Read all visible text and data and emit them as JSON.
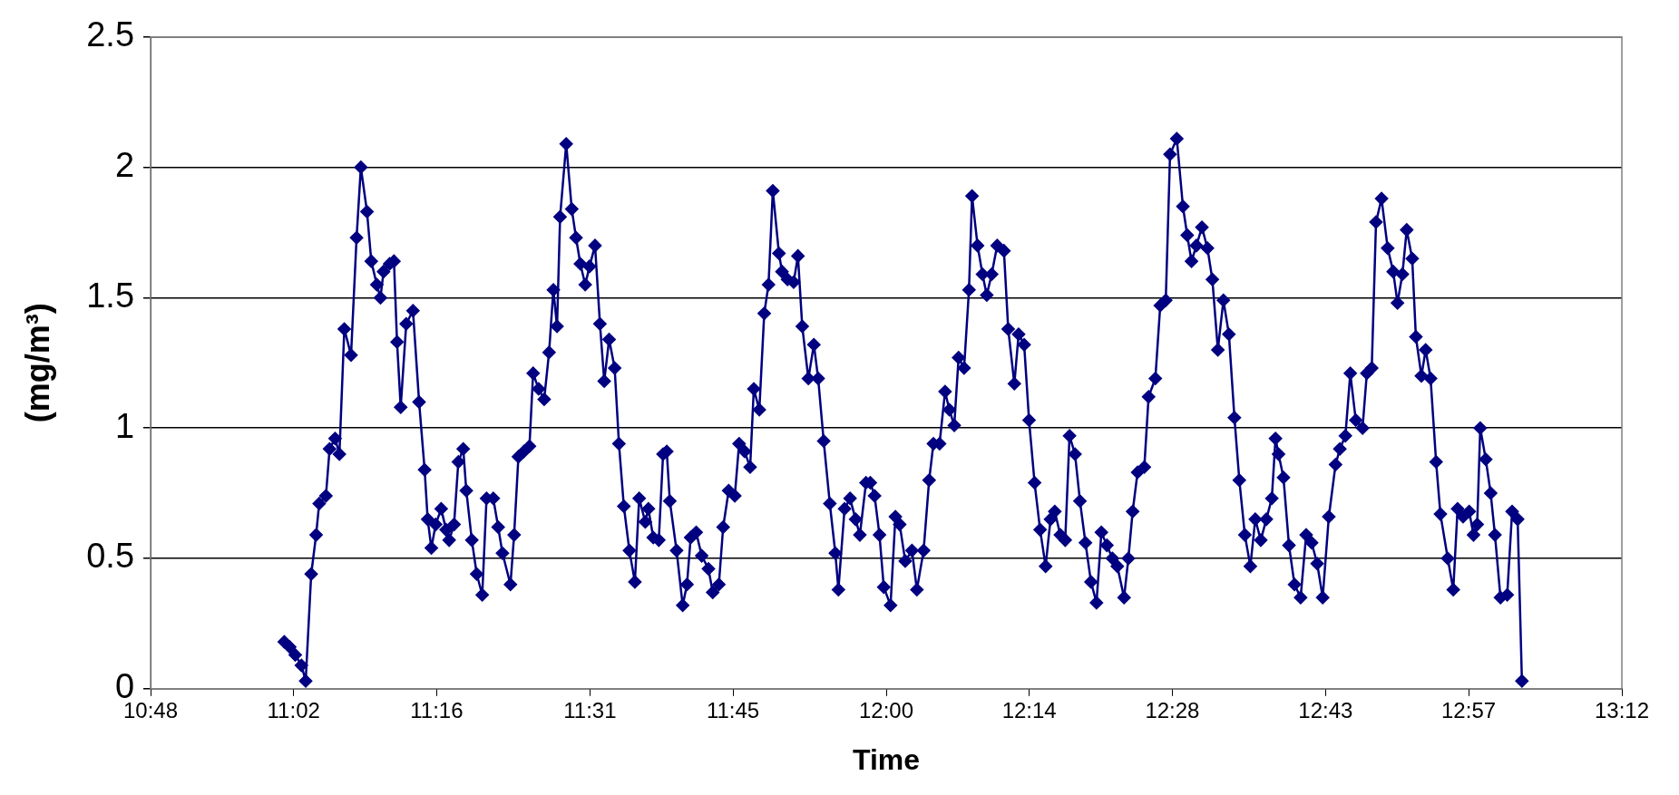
{
  "chart_data": {
    "type": "line",
    "xlabel": "Time",
    "ylabel": "(mg/m³)",
    "xlim": [
      10.8,
      13.2
    ],
    "ylim": [
      0,
      2.5
    ],
    "xticks": [
      {
        "value": 10.8,
        "label": "10:48"
      },
      {
        "value": 11.0333,
        "label": "11:02"
      },
      {
        "value": 11.2667,
        "label": "11:16"
      },
      {
        "value": 11.5167,
        "label": "11:31"
      },
      {
        "value": 11.75,
        "label": "11:45"
      },
      {
        "value": 12.0,
        "label": "12:00"
      },
      {
        "value": 12.2333,
        "label": "12:14"
      },
      {
        "value": 12.4667,
        "label": "12:28"
      },
      {
        "value": 12.7167,
        "label": "12:43"
      },
      {
        "value": 12.95,
        "label": "12:57"
      },
      {
        "value": 13.2,
        "label": "13:12"
      }
    ],
    "yticks": [
      0,
      0.5,
      1,
      1.5,
      2,
      2.5
    ],
    "grid": "y",
    "legend": false,
    "marker": "diamond",
    "line_style": "solid",
    "series": [
      {
        "color": "#000080",
        "x": [
          11.018,
          11.027,
          11.036,
          11.046,
          11.053,
          11.062,
          11.07,
          11.075,
          11.086,
          11.092,
          11.101,
          11.108,
          11.116,
          11.127,
          11.136,
          11.143,
          11.153,
          11.16,
          11.169,
          11.175,
          11.18,
          11.19,
          11.197,
          11.202,
          11.208,
          11.217,
          11.228,
          11.238,
          11.247,
          11.252,
          11.258,
          11.265,
          11.274,
          11.282,
          11.287,
          11.295,
          11.302,
          11.31,
          11.315,
          11.324,
          11.332,
          11.341,
          11.348,
          11.359,
          11.367,
          11.374,
          11.387,
          11.393,
          11.4,
          11.409,
          11.418,
          11.424,
          11.433,
          11.442,
          11.45,
          11.457,
          11.463,
          11.468,
          11.478,
          11.487,
          11.494,
          11.501,
          11.509,
          11.516,
          11.525,
          11.533,
          11.54,
          11.548,
          11.557,
          11.564,
          11.572,
          11.581,
          11.59,
          11.597,
          11.607,
          11.612,
          11.62,
          11.629,
          11.636,
          11.642,
          11.647,
          11.658,
          11.668,
          11.675,
          11.681,
          11.69,
          11.699,
          11.71,
          11.717,
          11.727,
          11.734,
          11.743,
          11.753,
          11.76,
          11.769,
          11.778,
          11.784,
          11.793,
          11.801,
          11.808,
          11.815,
          11.825,
          11.83,
          11.839,
          11.849,
          11.856,
          11.863,
          11.873,
          11.882,
          11.889,
          11.898,
          11.908,
          11.917,
          11.922,
          11.932,
          11.941,
          11.95,
          11.957,
          11.967,
          11.974,
          11.981,
          11.989,
          11.996,
          12.007,
          12.015,
          12.022,
          12.031,
          12.042,
          12.05,
          12.061,
          12.07,
          12.077,
          12.087,
          12.096,
          12.103,
          12.111,
          12.118,
          12.127,
          12.135,
          12.14,
          12.149,
          12.157,
          12.164,
          12.172,
          12.181,
          12.192,
          12.199,
          12.209,
          12.216,
          12.225,
          12.233,
          12.242,
          12.251,
          12.26,
          12.268,
          12.275,
          12.284,
          12.292,
          12.299,
          12.308,
          12.316,
          12.325,
          12.334,
          12.343,
          12.351,
          12.36,
          12.369,
          12.377,
          12.388,
          12.395,
          12.402,
          12.41,
          12.421,
          12.428,
          12.439,
          12.447,
          12.456,
          12.463,
          12.474,
          12.484,
          12.491,
          12.498,
          12.506,
          12.515,
          12.524,
          12.532,
          12.541,
          12.55,
          12.559,
          12.568,
          12.576,
          12.585,
          12.594,
          12.602,
          12.611,
          12.62,
          12.629,
          12.635,
          12.64,
          12.648,
          12.657,
          12.666,
          12.676,
          12.685,
          12.694,
          12.703,
          12.712,
          12.722,
          12.733,
          12.74,
          12.749,
          12.757,
          12.766,
          12.777,
          12.784,
          12.792,
          12.799,
          12.808,
          12.818,
          12.827,
          12.834,
          12.842,
          12.849,
          12.858,
          12.864,
          12.873,
          12.88,
          12.888,
          12.897,
          12.904,
          12.916,
          12.925,
          12.932,
          12.941,
          12.951,
          12.958,
          12.964,
          12.969,
          12.978,
          12.986,
          12.993,
          13.002,
          13.013,
          13.021,
          13.03,
          13.037
        ],
        "values": [
          0.18,
          0.16,
          0.13,
          0.09,
          0.03,
          0.44,
          0.59,
          0.71,
          0.74,
          0.92,
          0.96,
          0.9,
          1.38,
          1.28,
          1.73,
          2.0,
          1.83,
          1.64,
          1.55,
          1.5,
          1.6,
          1.63,
          1.64,
          1.33,
          1.08,
          1.4,
          1.45,
          1.1,
          0.84,
          0.65,
          0.54,
          0.63,
          0.69,
          0.61,
          0.57,
          0.63,
          0.87,
          0.92,
          0.76,
          0.57,
          0.44,
          0.36,
          0.73,
          0.73,
          0.62,
          0.52,
          0.4,
          0.59,
          0.89,
          0.91,
          0.93,
          1.21,
          1.15,
          1.11,
          1.29,
          1.53,
          1.39,
          1.81,
          2.09,
          1.84,
          1.73,
          1.63,
          1.55,
          1.62,
          1.7,
          1.4,
          1.18,
          1.34,
          1.23,
          0.94,
          0.7,
          0.53,
          0.41,
          0.73,
          0.64,
          0.69,
          0.58,
          0.57,
          0.9,
          0.91,
          0.72,
          0.53,
          0.32,
          0.4,
          0.58,
          0.6,
          0.51,
          0.46,
          0.37,
          0.4,
          0.62,
          0.76,
          0.74,
          0.94,
          0.91,
          0.85,
          1.15,
          1.07,
          1.44,
          1.55,
          1.91,
          1.67,
          1.6,
          1.57,
          1.56,
          1.66,
          1.39,
          1.19,
          1.32,
          1.19,
          0.95,
          0.71,
          0.52,
          0.38,
          0.69,
          0.73,
          0.65,
          0.59,
          0.79,
          0.79,
          0.74,
          0.59,
          0.39,
          0.32,
          0.66,
          0.63,
          0.49,
          0.53,
          0.38,
          0.53,
          0.8,
          0.94,
          0.94,
          1.14,
          1.07,
          1.01,
          1.27,
          1.23,
          1.53,
          1.89,
          1.7,
          1.59,
          1.51,
          1.59,
          1.7,
          1.68,
          1.38,
          1.17,
          1.36,
          1.32,
          1.03,
          0.79,
          0.61,
          0.47,
          0.65,
          0.68,
          0.59,
          0.57,
          0.97,
          0.9,
          0.72,
          0.56,
          0.41,
          0.33,
          0.6,
          0.55,
          0.5,
          0.47,
          0.35,
          0.5,
          0.68,
          0.83,
          0.85,
          1.12,
          1.19,
          1.47,
          1.49,
          2.05,
          2.11,
          1.85,
          1.74,
          1.64,
          1.7,
          1.77,
          1.69,
          1.57,
          1.3,
          1.49,
          1.36,
          1.04,
          0.8,
          0.59,
          0.47,
          0.65,
          0.57,
          0.65,
          0.73,
          0.96,
          0.9,
          0.81,
          0.55,
          0.4,
          0.35,
          0.59,
          0.56,
          0.48,
          0.35,
          0.66,
          0.86,
          0.92,
          0.97,
          1.21,
          1.03,
          1.0,
          1.21,
          1.23,
          1.79,
          1.88,
          1.69,
          1.6,
          1.48,
          1.59,
          1.76,
          1.65,
          1.35,
          1.2,
          1.3,
          1.19,
          0.87,
          0.67,
          0.5,
          0.38,
          0.69,
          0.66,
          0.68,
          0.59,
          0.63,
          1.0,
          0.88,
          0.75,
          0.59,
          0.35,
          0.36,
          0.68,
          0.65,
          0.03
        ]
      }
    ]
  }
}
